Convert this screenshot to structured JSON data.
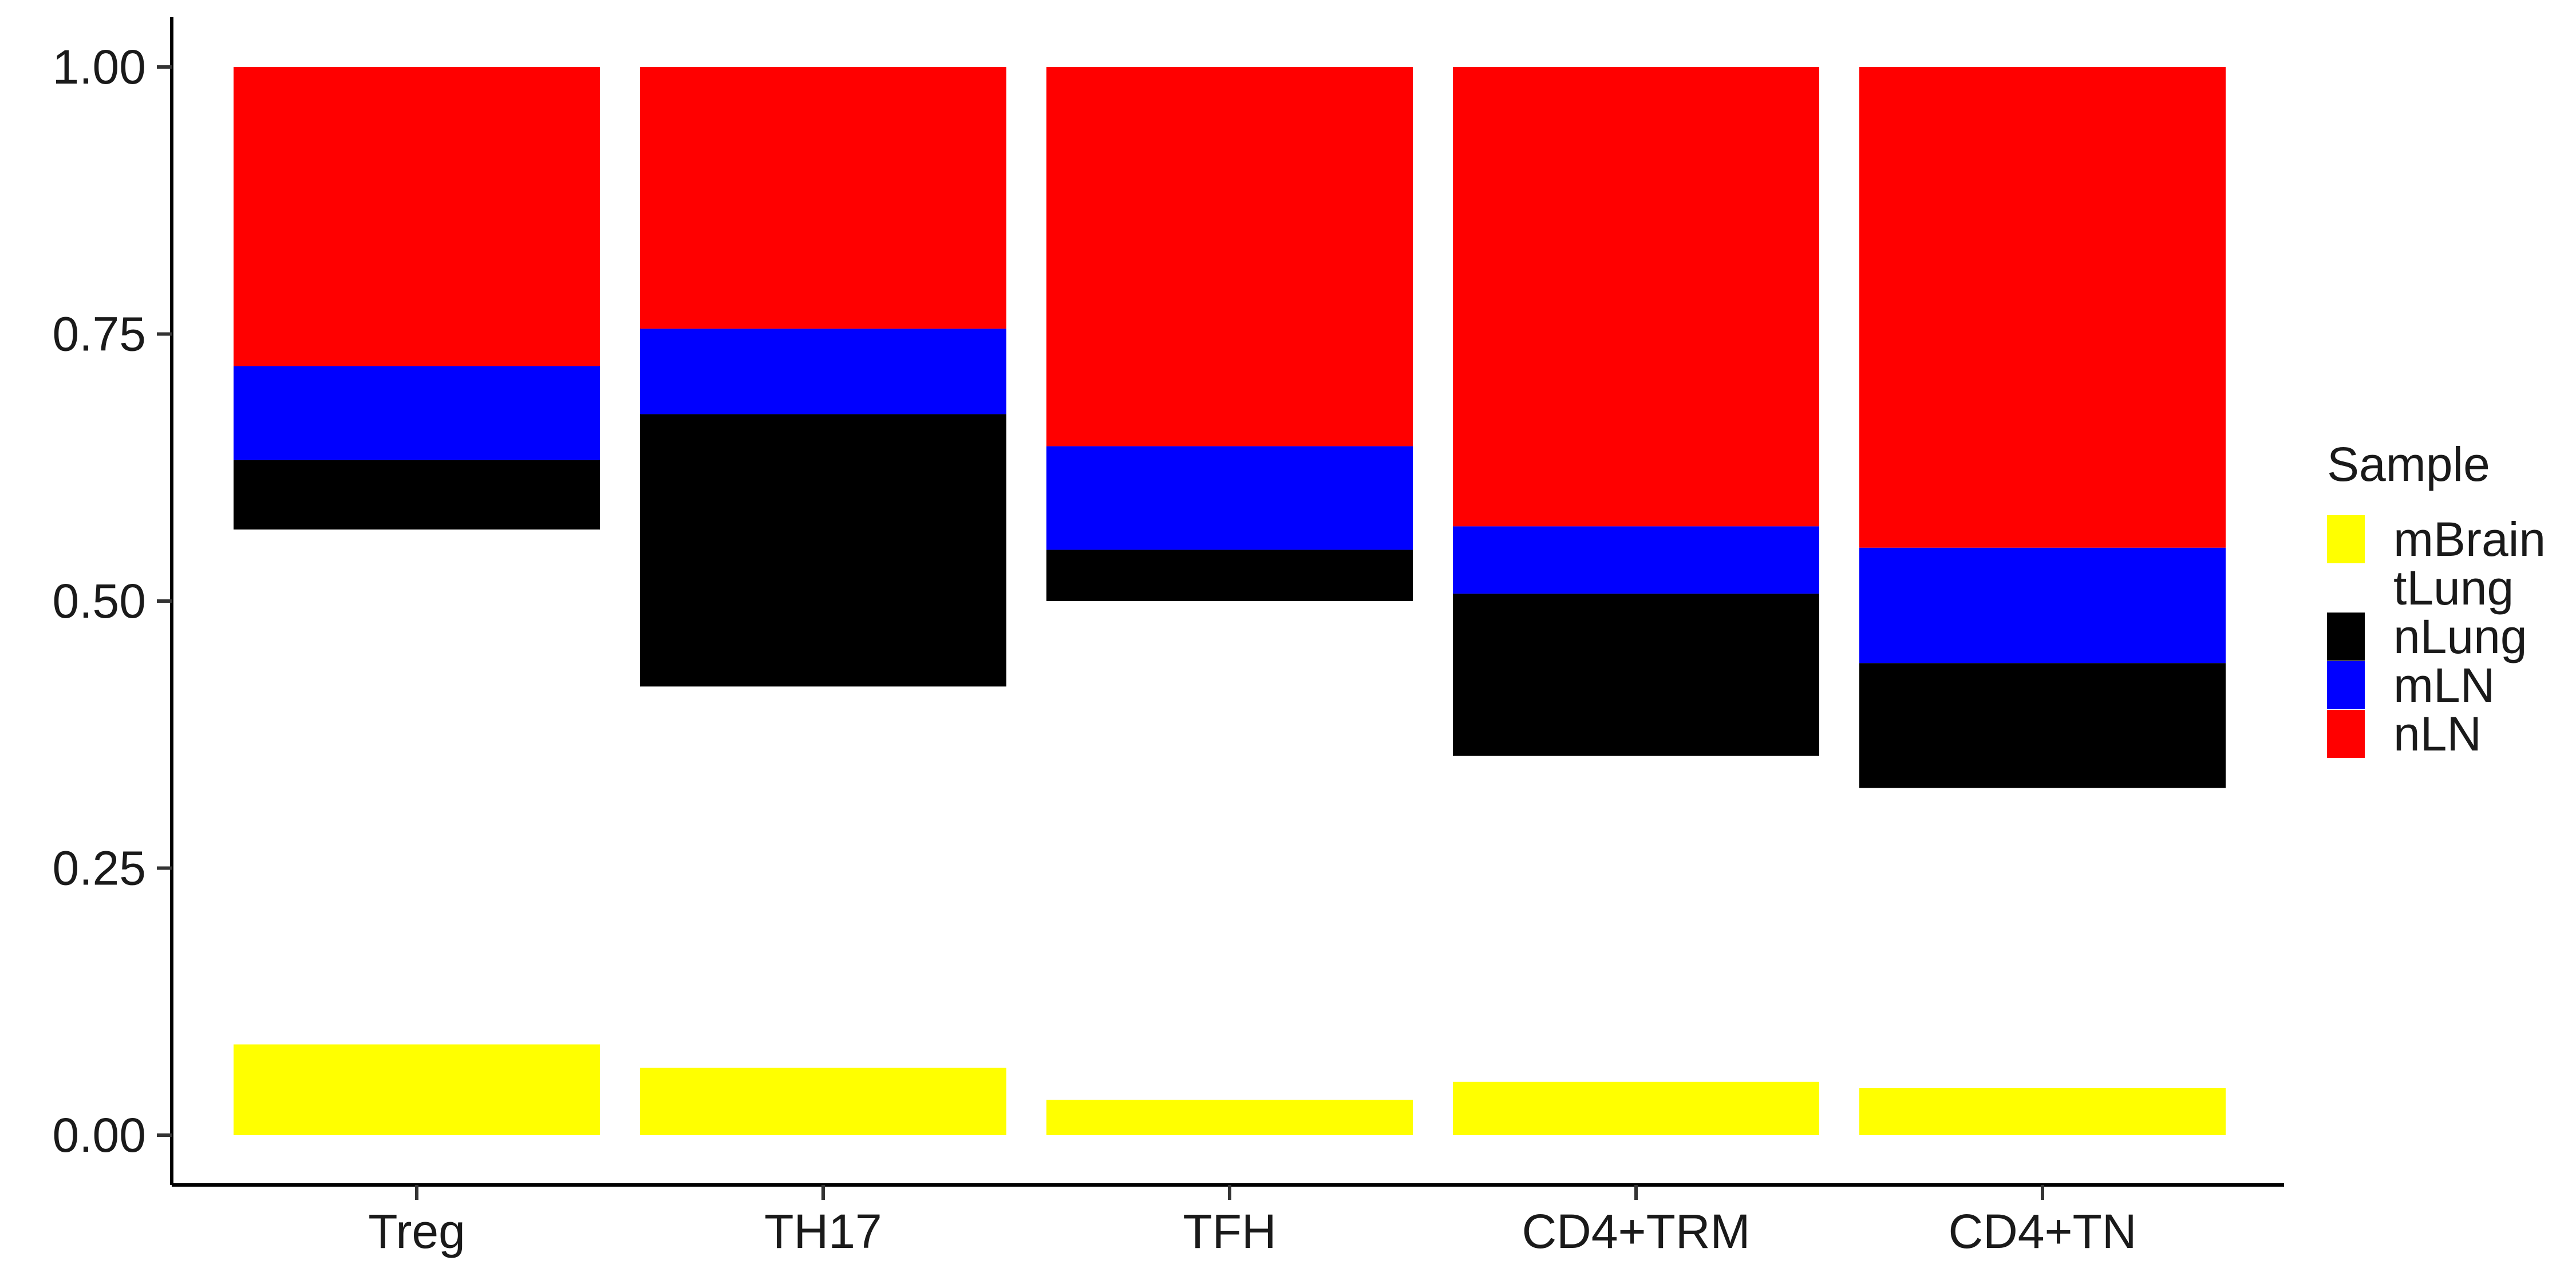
{
  "chart_data": {
    "type": "bar",
    "stacked": true,
    "title": "",
    "xlabel": "",
    "ylabel": "",
    "ylim": [
      0,
      1
    ],
    "yticks": [
      "0.00",
      "0.25",
      "0.50",
      "0.75",
      "1.00"
    ],
    "grid": false,
    "categories": [
      "Treg",
      "TH17",
      "TFH",
      "CD4+TRM",
      "CD4+TN"
    ],
    "series": [
      {
        "name": "mBrain",
        "color": "#FFFF00",
        "values": [
          0.085,
          0.063,
          0.033,
          0.05,
          0.044
        ]
      },
      {
        "name": "tLung",
        "color": "#FFFFFF",
        "values": [
          0.482,
          0.357,
          0.467,
          0.305,
          0.281
        ]
      },
      {
        "name": "nLung",
        "color": "#000000",
        "values": [
          0.065,
          0.255,
          0.048,
          0.152,
          0.117
        ]
      },
      {
        "name": "mLN",
        "color": "#0000FF",
        "values": [
          0.088,
          0.08,
          0.097,
          0.063,
          0.108
        ]
      },
      {
        "name": "nLN",
        "color": "#FF0000",
        "values": [
          0.28,
          0.245,
          0.355,
          0.43,
          0.45
        ]
      }
    ],
    "legend": {
      "title": "Sample",
      "position": "right"
    }
  }
}
